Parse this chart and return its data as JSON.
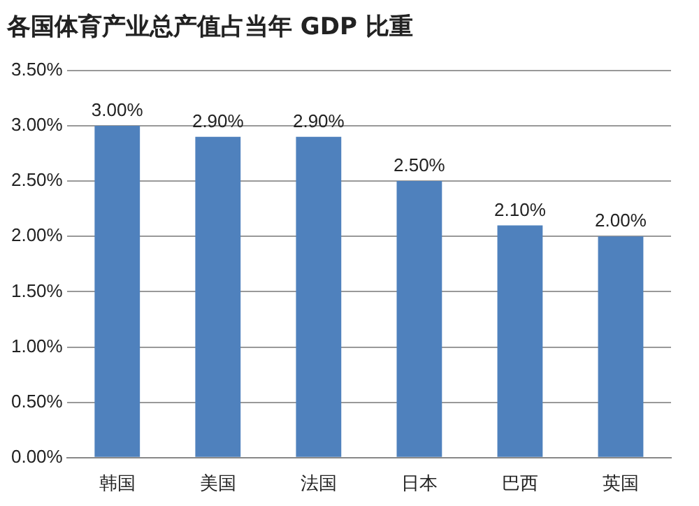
{
  "chart_data": {
    "type": "bar",
    "title": "各国体育产业总产值占当年 GDP 比重",
    "categories": [
      "韩国",
      "美国",
      "法国",
      "日本",
      "巴西",
      "英国"
    ],
    "values": [
      3.0,
      2.9,
      2.9,
      2.5,
      2.1,
      2.0
    ],
    "value_labels": [
      "3.00%",
      "2.90%",
      "2.90%",
      "2.50%",
      "2.10%",
      "2.00%"
    ],
    "color": "#4f81bd",
    "ylim": [
      0,
      3.5
    ],
    "yticks": [
      {
        "value": 0,
        "label": "0.00%"
      },
      {
        "value": 0.5,
        "label": "0.50%"
      },
      {
        "value": 1,
        "label": "1.00%"
      },
      {
        "value": 1.5,
        "label": "1.50%"
      },
      {
        "value": 2,
        "label": "2.00%"
      },
      {
        "value": 2.5,
        "label": "2.50%"
      },
      {
        "value": 3,
        "label": "3.00%"
      },
      {
        "value": 3.5,
        "label": "3.50%"
      }
    ],
    "grid": "y"
  }
}
